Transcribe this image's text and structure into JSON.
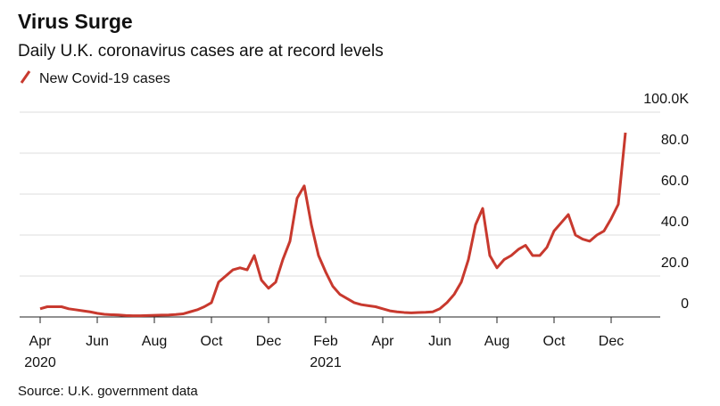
{
  "chart_data": {
    "type": "line",
    "title": "Virus Surge",
    "subtitle": "Daily U.K. coronavirus cases are at record levels",
    "source": "Source: U.K. government data",
    "categories": [
      "Apr",
      null,
      null,
      null,
      null,
      null,
      null,
      null,
      "Jun",
      null,
      null,
      null,
      null,
      null,
      null,
      null,
      "Aug",
      null,
      null,
      null,
      null,
      null,
      null,
      null,
      "Oct",
      null,
      null,
      null,
      null,
      null,
      null,
      null,
      "Dec",
      null,
      null,
      null,
      null,
      null,
      null,
      null,
      "Feb",
      null,
      null,
      null,
      null,
      null,
      null,
      null,
      "Apr",
      null,
      null,
      null,
      null,
      null,
      null,
      null,
      "Jun",
      null,
      null,
      null,
      null,
      null,
      null,
      null,
      "Aug",
      null,
      null,
      null,
      null,
      null,
      null,
      null,
      "Oct",
      null,
      null,
      null,
      null,
      null,
      null,
      null,
      "Dec",
      null,
      null
    ],
    "year_labels": [
      "2020",
      null,
      null,
      null,
      null,
      null,
      null,
      null,
      null,
      null,
      null,
      null,
      null,
      null,
      null,
      null,
      null,
      null,
      null,
      null,
      null,
      null,
      null,
      null,
      null,
      null,
      null,
      null,
      null,
      null,
      null,
      null,
      null,
      null,
      null,
      null,
      null,
      null,
      null,
      null,
      "2021",
      null,
      null,
      null,
      null,
      null,
      null,
      null,
      null,
      null,
      null,
      null,
      null,
      null,
      null,
      null,
      null,
      null,
      null,
      null,
      null,
      null,
      null,
      null,
      null,
      null,
      null,
      null,
      null,
      null,
      null,
      null,
      null,
      null,
      null,
      null,
      null,
      null,
      null,
      null,
      null,
      null,
      null
    ],
    "series": [
      {
        "name": "New Covid-19 cases",
        "color": "#c8392e",
        "values": [
          4,
          5,
          5,
          5,
          4,
          3.5,
          3,
          2.5,
          1.8,
          1.3,
          1.1,
          1,
          0.7,
          0.6,
          0.6,
          0.7,
          0.8,
          0.9,
          1,
          1.2,
          1.5,
          2.5,
          3.5,
          5,
          7,
          17,
          20,
          23,
          24,
          23,
          30,
          18,
          14,
          17,
          28,
          37,
          58,
          64,
          45,
          30,
          22,
          15,
          11,
          9,
          7,
          6,
          5.5,
          5,
          4,
          3,
          2.5,
          2.2,
          2,
          2.2,
          2.3,
          2.5,
          4,
          7,
          11,
          17,
          28,
          45,
          53,
          30,
          24,
          28,
          30,
          33,
          35,
          30,
          30,
          34,
          42,
          46,
          50,
          40,
          38,
          37,
          40,
          42,
          48,
          55,
          90
        ]
      }
    ],
    "ylim": [
      0,
      100
    ],
    "yticks": [
      0,
      {
        "value": 20,
        "label": "20.0"
      },
      {
        "value": 40,
        "label": "40.0"
      },
      {
        "value": 60,
        "label": "60.0"
      },
      {
        "value": 80,
        "label": "80.0"
      },
      {
        "value": 100,
        "label": "100.0K"
      }
    ],
    "grid": true
  }
}
